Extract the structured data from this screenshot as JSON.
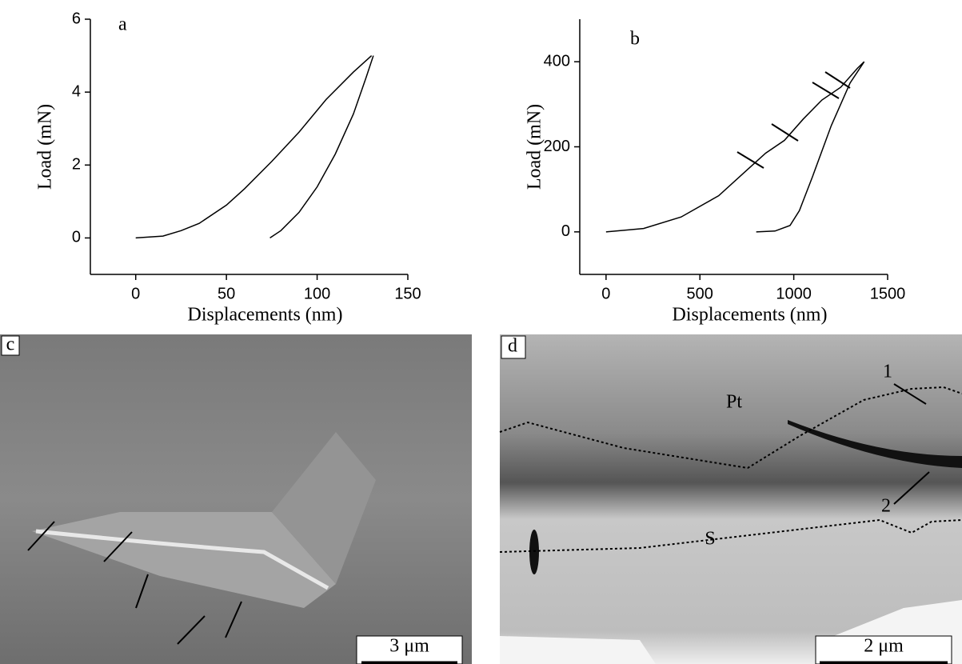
{
  "chart_data": [
    {
      "type": "line",
      "panel_label": "a",
      "x_label": "Displacements (nm)",
      "y_label": "Load (mN)",
      "xlim": [
        -25,
        150
      ],
      "xticks": [
        0,
        50,
        100,
        150
      ],
      "ylim": [
        -1,
        6
      ],
      "yticks": [
        0,
        2,
        4,
        6
      ],
      "series": [
        {
          "color": "#000000",
          "x": [
            0,
            15,
            25,
            35,
            50,
            60,
            75,
            90,
            105,
            120,
            130
          ],
          "values": [
            0,
            0.05,
            0.2,
            0.4,
            0.9,
            1.35,
            2.1,
            2.9,
            3.8,
            4.55,
            5
          ]
        },
        {
          "color": "#000000",
          "x": [
            74,
            80,
            90,
            100,
            110,
            120,
            127,
            131
          ],
          "values": [
            0,
            0.2,
            0.7,
            1.4,
            2.3,
            3.4,
            4.4,
            5
          ]
        }
      ]
    },
    {
      "type": "line",
      "panel_label": "b",
      "x_label": "Displacements (nm)",
      "y_label": "Load (mN)",
      "xlim": [
        -140,
        1500
      ],
      "xticks": [
        0,
        500,
        1000,
        1500
      ],
      "ylim": [
        -100,
        500
      ],
      "yticks": [
        0,
        200,
        400
      ],
      "series": [
        {
          "color": "#000000",
          "x": [
            0,
            200,
            400,
            600,
            750,
            850,
            950,
            1050,
            1150,
            1250,
            1340,
            1375
          ],
          "values": [
            0,
            8,
            35,
            85,
            145,
            185,
            215,
            265,
            310,
            340,
            385,
            400
          ]
        },
        {
          "color": "#000000",
          "x": [
            800,
            900,
            980,
            1030,
            1100,
            1200,
            1300,
            1375
          ],
          "values": [
            0,
            2,
            15,
            50,
            130,
            250,
            350,
            400
          ]
        }
      ]
    }
  ],
  "panel_c": {
    "label": "c",
    "scale_bar": "3 μm"
  },
  "panel_d": {
    "label": "d",
    "scale_bar": "2 μm",
    "region_top": "Pt",
    "region_bottom": "S",
    "marker_1": "1",
    "marker_2": "2"
  }
}
